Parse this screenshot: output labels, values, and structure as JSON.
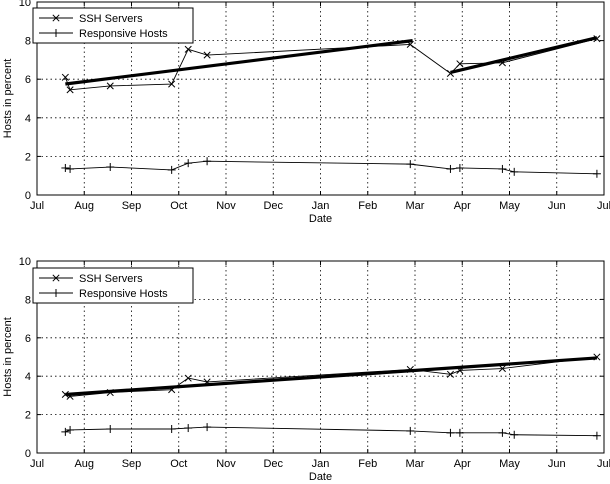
{
  "chart_data": [
    {
      "type": "line",
      "xlabel": "Date",
      "ylabel": "Hosts in percent",
      "ylim": [
        0,
        10
      ],
      "y_ticks": [
        0,
        2,
        4,
        6,
        8,
        10
      ],
      "x_ticks": [
        "Jul",
        "Aug",
        "Sep",
        "Oct",
        "Nov",
        "Dec",
        "Jan",
        "Feb",
        "Mar",
        "Apr",
        "May",
        "Jun",
        "Jul"
      ],
      "xlim": [
        0,
        12
      ],
      "grid": true,
      "legend_position": "top-left",
      "series": [
        {
          "name": "SSH Servers",
          "marker": "x",
          "x": [
            0.6,
            0.7,
            1.55,
            2.85,
            3.2,
            3.6,
            7.9,
            8.75,
            8.95,
            9.85,
            11.85
          ],
          "y": [
            6.1,
            5.45,
            5.65,
            5.75,
            7.55,
            7.25,
            7.8,
            6.3,
            6.8,
            6.85,
            8.1
          ]
        },
        {
          "name": "Responsive Hosts",
          "marker": "+",
          "x": [
            0.6,
            0.7,
            1.55,
            2.85,
            3.2,
            3.6,
            7.9,
            8.75,
            8.95,
            9.85,
            10.1,
            11.85
          ],
          "y": [
            1.4,
            1.35,
            1.45,
            1.3,
            1.65,
            1.75,
            1.6,
            1.35,
            1.4,
            1.35,
            1.2,
            1.1
          ]
        }
      ],
      "trend_lines": [
        {
          "x": [
            0.6,
            7.95
          ],
          "y": [
            5.75,
            8.0
          ]
        },
        {
          "x": [
            8.75,
            11.85
          ],
          "y": [
            6.35,
            8.15
          ]
        }
      ]
    },
    {
      "type": "line",
      "xlabel": "Date",
      "ylabel": "Hosts in percent",
      "ylim": [
        0,
        10
      ],
      "y_ticks": [
        0,
        2,
        4,
        6,
        8,
        10
      ],
      "x_ticks": [
        "Jul",
        "Aug",
        "Sep",
        "Oct",
        "Nov",
        "Dec",
        "Jan",
        "Feb",
        "Mar",
        "Apr",
        "May",
        "Jun",
        "Jul"
      ],
      "xlim": [
        0,
        12
      ],
      "grid": true,
      "legend_position": "top-left",
      "series": [
        {
          "name": "SSH Servers",
          "marker": "x",
          "x": [
            0.6,
            0.7,
            1.55,
            2.85,
            3.2,
            3.6,
            7.9,
            8.75,
            8.95,
            9.85,
            11.85
          ],
          "y": [
            3.05,
            2.95,
            3.15,
            3.3,
            3.9,
            3.7,
            4.35,
            4.1,
            4.3,
            4.4,
            5.0
          ]
        },
        {
          "name": "Responsive Hosts",
          "marker": "+",
          "x": [
            0.6,
            0.7,
            1.55,
            2.85,
            3.2,
            3.6,
            7.9,
            8.75,
            8.95,
            9.85,
            10.1,
            11.85
          ],
          "y": [
            1.1,
            1.2,
            1.25,
            1.25,
            1.3,
            1.35,
            1.15,
            1.05,
            1.05,
            1.05,
            0.95,
            0.9
          ]
        }
      ],
      "trend_lines": [
        {
          "x": [
            0.6,
            11.85
          ],
          "y": [
            3.05,
            4.95
          ]
        }
      ]
    }
  ]
}
